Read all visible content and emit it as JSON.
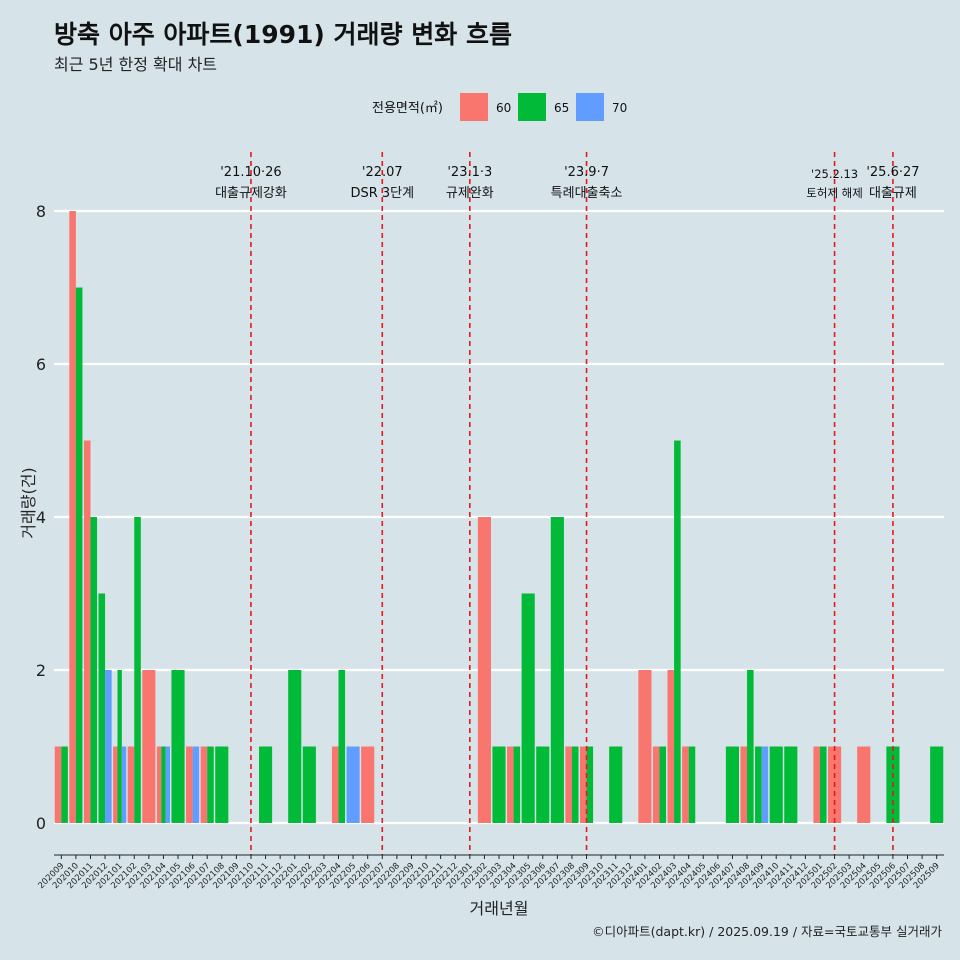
{
  "chart_data": {
    "type": "bar",
    "title": "방축 아주 아파트(1991) 거래량 변화 흐름",
    "subtitle": "최근 5년 한정 확대 차트",
    "xlabel": "거래년월",
    "ylabel": "거래량(건)",
    "caption": "©디아파트(dapt.kr) / 2025.09.19 / 자료=국토교통부 실거래가",
    "legend": {
      "title": "전용면적(㎡)",
      "position": "top"
    },
    "ylim": [
      0,
      8
    ],
    "y_ticks": [
      0,
      2,
      4,
      6,
      8
    ],
    "categories": [
      "202009",
      "202010",
      "202011",
      "202012",
      "202101",
      "202102",
      "202103",
      "202104",
      "202105",
      "202106",
      "202107",
      "202108",
      "202109",
      "202110",
      "202111",
      "202112",
      "202201",
      "202202",
      "202203",
      "202204",
      "202205",
      "202206",
      "202207",
      "202208",
      "202209",
      "202210",
      "202211",
      "202212",
      "202301",
      "202302",
      "202303",
      "202304",
      "202305",
      "202306",
      "202307",
      "202308",
      "202309",
      "202310",
      "202311",
      "202312",
      "202401",
      "202402",
      "202403",
      "202404",
      "202405",
      "202406",
      "202407",
      "202408",
      "202409",
      "202410",
      "202411",
      "202412",
      "202501",
      "202502",
      "202503",
      "202504",
      "202505",
      "202506",
      "202507",
      "202508",
      "202509"
    ],
    "series": [
      {
        "name": "60",
        "color": "#f8766d",
        "values": [
          1,
          8,
          5,
          0,
          1,
          1,
          2,
          1,
          0,
          1,
          1,
          0,
          0,
          0,
          0,
          0,
          0,
          0,
          0,
          1,
          0,
          1,
          0,
          0,
          0,
          0,
          0,
          0,
          0,
          4,
          0,
          1,
          0,
          0,
          0,
          1,
          1,
          0,
          0,
          0,
          2,
          1,
          2,
          1,
          0,
          0,
          0,
          1,
          0,
          0,
          0,
          0,
          1,
          1,
          0,
          1,
          0,
          0,
          0,
          0,
          0
        ]
      },
      {
        "name": "65",
        "color": "#00ba38",
        "values": [
          1,
          7,
          4,
          3,
          2,
          4,
          0,
          1,
          2,
          0,
          1,
          1,
          0,
          0,
          1,
          0,
          2,
          1,
          0,
          2,
          0,
          0,
          0,
          0,
          0,
          0,
          0,
          0,
          0,
          0,
          1,
          1,
          3,
          1,
          4,
          1,
          1,
          0,
          1,
          0,
          0,
          1,
          5,
          1,
          0,
          0,
          1,
          2,
          1,
          1,
          1,
          0,
          1,
          0,
          0,
          0,
          0,
          1,
          0,
          0,
          1
        ]
      },
      {
        "name": "70",
        "color": "#619cff",
        "values": [
          0,
          0,
          0,
          2,
          1,
          0,
          0,
          1,
          0,
          1,
          0,
          0,
          0,
          0,
          0,
          0,
          0,
          0,
          0,
          0,
          1,
          0,
          0,
          0,
          0,
          0,
          0,
          0,
          0,
          0,
          0,
          0,
          0,
          0,
          0,
          0,
          0,
          0,
          0,
          0,
          0,
          0,
          0,
          0,
          0,
          0,
          0,
          0,
          1,
          0,
          0,
          0,
          0,
          0,
          0,
          0,
          0,
          0,
          0,
          0,
          0
        ]
      }
    ],
    "annotations": [
      {
        "at": "202110",
        "date": "'21.10·26",
        "text": "대출규제강화"
      },
      {
        "at": "202207",
        "date": "'22.07",
        "text": "DSR 3단계"
      },
      {
        "at": "202301",
        "date": "'23.1·3",
        "text": "규제완화"
      },
      {
        "at": "202309",
        "date": "'23.9·7",
        "text": "특례대출축소"
      },
      {
        "at": "202502",
        "date": "'25.2.13",
        "text": "토허제 해제"
      },
      {
        "at": "202506",
        "date": "'25.6·27",
        "text": "대출규제"
      }
    ]
  }
}
